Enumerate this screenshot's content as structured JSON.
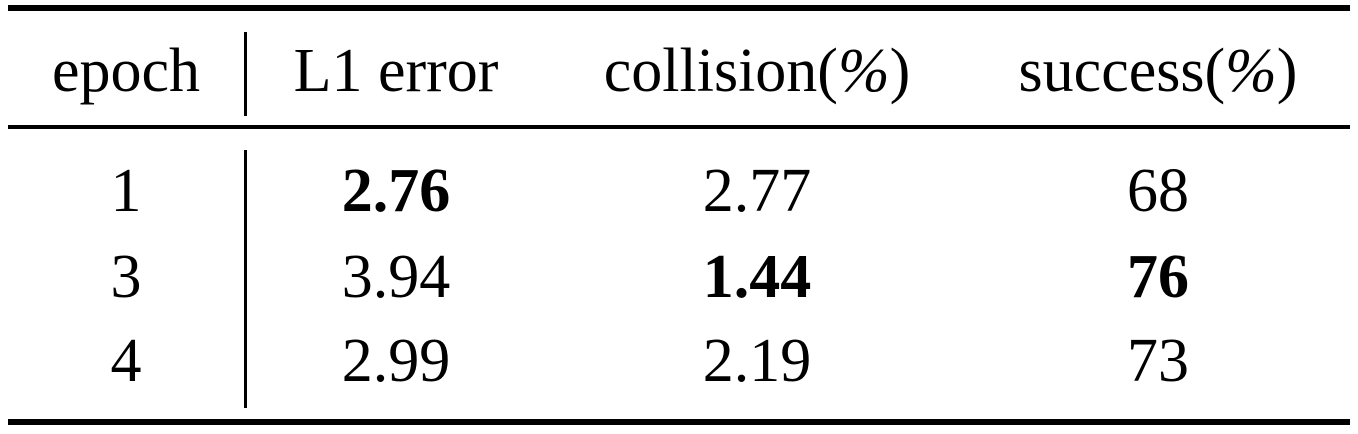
{
  "table": {
    "headers": [
      {
        "label": "epoch"
      },
      {
        "label": "L1 error"
      },
      {
        "prefix": "collision(",
        "symbol": "%",
        "suffix": ")"
      },
      {
        "prefix": "success(",
        "symbol": "%",
        "suffix": ")"
      }
    ],
    "rows": [
      {
        "epoch": "1",
        "l1_error": "2.76",
        "collision": "2.77",
        "success": "68"
      },
      {
        "epoch": "3",
        "l1_error": "3.94",
        "collision": "1.44",
        "success": "76"
      },
      {
        "epoch": "4",
        "l1_error": "2.99",
        "collision": "2.19",
        "success": "73"
      }
    ],
    "bold_cells": [
      "rows.0.l1_error",
      "rows.1.collision",
      "rows.1.success"
    ]
  }
}
